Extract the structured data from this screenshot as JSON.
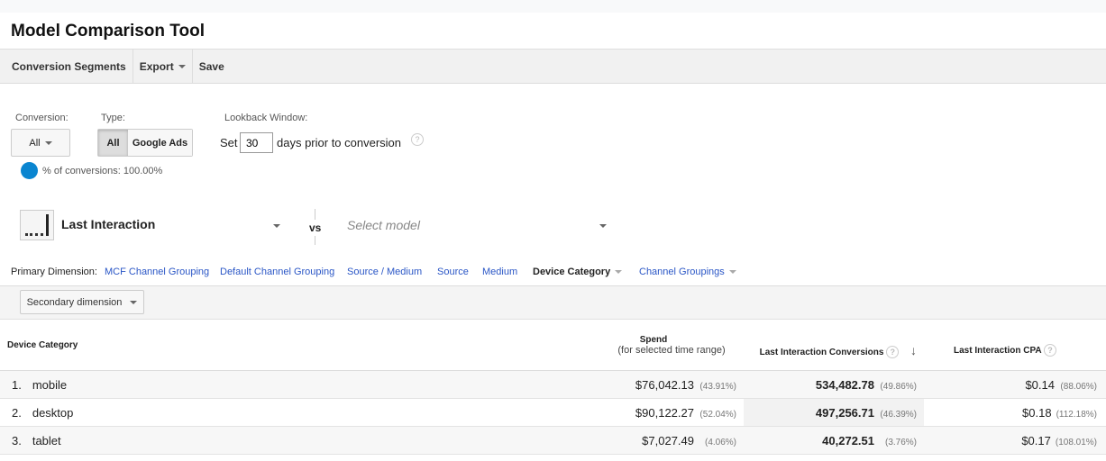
{
  "title": "Model Comparison Tool",
  "toolbar": {
    "segments": "Conversion Segments",
    "export": "Export",
    "save": "Save"
  },
  "filters": {
    "conversion_label": "Conversion:",
    "conversion_value": "All",
    "type_label": "Type:",
    "type_all": "All",
    "type_ads": "Google Ads",
    "lookback_label": "Lookback Window:",
    "set": "Set",
    "days": "30",
    "days_suffix": "days prior to conversion",
    "pct_conversions": "% of conversions: 100.00%",
    "accent": "#0a85d0"
  },
  "model": {
    "selected": "Last Interaction",
    "vs": "vs",
    "placeholder": "Select model"
  },
  "dimensions": {
    "label": "Primary Dimension:",
    "items": [
      "MCF Channel Grouping",
      "Default Channel Grouping",
      "Source / Medium",
      "Source",
      "Medium"
    ],
    "active": "Device Category",
    "groupings": "Channel Groupings",
    "secondary": "Secondary dimension"
  },
  "table": {
    "headers": {
      "dim": "Device Category",
      "spend": "Spend",
      "spend_sub": "(for selected time range)",
      "conv": "Last Interaction Conversions",
      "cpa": "Last Interaction CPA"
    },
    "rows": [
      {
        "n": "1.",
        "name": "mobile",
        "spend": "$76,042.13",
        "spend_pct": "(43.91%)",
        "conv": "534,482.78",
        "conv_pct": "(49.86%)",
        "cpa": "$0.14",
        "cpa_pct": "(88.06%)"
      },
      {
        "n": "2.",
        "name": "desktop",
        "spend": "$90,122.27",
        "spend_pct": "(52.04%)",
        "conv": "497,256.71",
        "conv_pct": "(46.39%)",
        "cpa": "$0.18",
        "cpa_pct": "(112.18%)"
      },
      {
        "n": "3.",
        "name": "tablet",
        "spend": "$7,027.49",
        "spend_pct": "(4.06%)",
        "conv": "40,272.51",
        "conv_pct": "(3.76%)",
        "cpa": "$0.17",
        "cpa_pct": "(108.01%)"
      }
    ]
  }
}
